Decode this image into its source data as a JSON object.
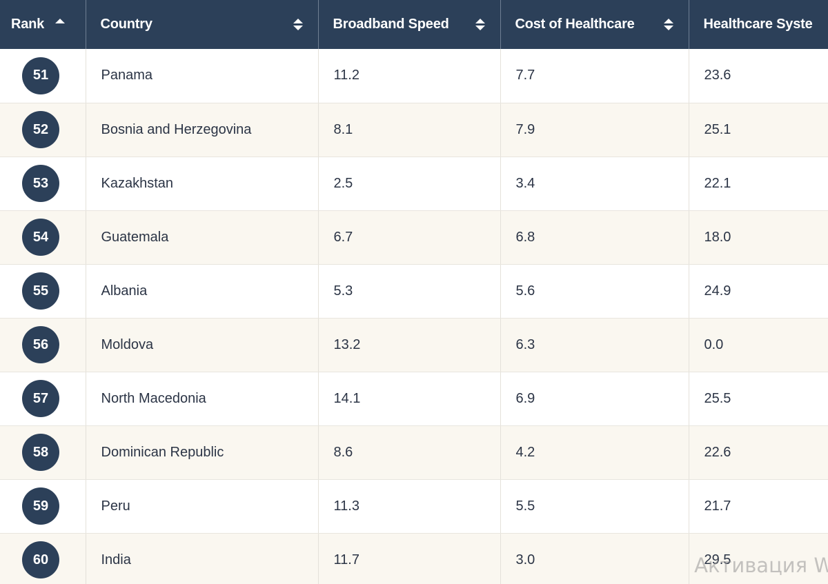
{
  "table": {
    "columns": [
      {
        "label": "Rank",
        "sort": "asc"
      },
      {
        "label": "Country",
        "sort": "both"
      },
      {
        "label": "Broadband Speed",
        "sort": "both"
      },
      {
        "label": "Cost of Healthcare",
        "sort": "both"
      },
      {
        "label": "Healthcare Syste",
        "sort": "none"
      }
    ],
    "rows": [
      {
        "rank": "51",
        "country": "Panama",
        "broadband": "11.2",
        "cost": "7.7",
        "healthcare": "23.6"
      },
      {
        "rank": "52",
        "country": "Bosnia and Herzegovina",
        "broadband": "8.1",
        "cost": "7.9",
        "healthcare": "25.1"
      },
      {
        "rank": "53",
        "country": "Kazakhstan",
        "broadband": "2.5",
        "cost": "3.4",
        "healthcare": "22.1"
      },
      {
        "rank": "54",
        "country": "Guatemala",
        "broadband": "6.7",
        "cost": "6.8",
        "healthcare": "18.0"
      },
      {
        "rank": "55",
        "country": "Albania",
        "broadband": "5.3",
        "cost": "5.6",
        "healthcare": "24.9"
      },
      {
        "rank": "56",
        "country": "Moldova",
        "broadband": "13.2",
        "cost": "6.3",
        "healthcare": "0.0"
      },
      {
        "rank": "57",
        "country": "North Macedonia",
        "broadband": "14.1",
        "cost": "6.9",
        "healthcare": "25.5"
      },
      {
        "rank": "58",
        "country": "Dominican Republic",
        "broadband": "8.6",
        "cost": "4.2",
        "healthcare": "22.6"
      },
      {
        "rank": "59",
        "country": "Peru",
        "broadband": "11.3",
        "cost": "5.5",
        "healthcare": "21.7"
      },
      {
        "rank": "60",
        "country": "India",
        "broadband": "11.7",
        "cost": "3.0",
        "healthcare": "29.5"
      }
    ]
  },
  "watermark": "Активация W",
  "colors": {
    "header_bg": "#2c4059",
    "row_alt_bg": "#faf7f0",
    "text": "#2b3445"
  },
  "icons": {
    "rank_sort": "sort-asc-icon",
    "column_sort": "sort-both-icon"
  }
}
